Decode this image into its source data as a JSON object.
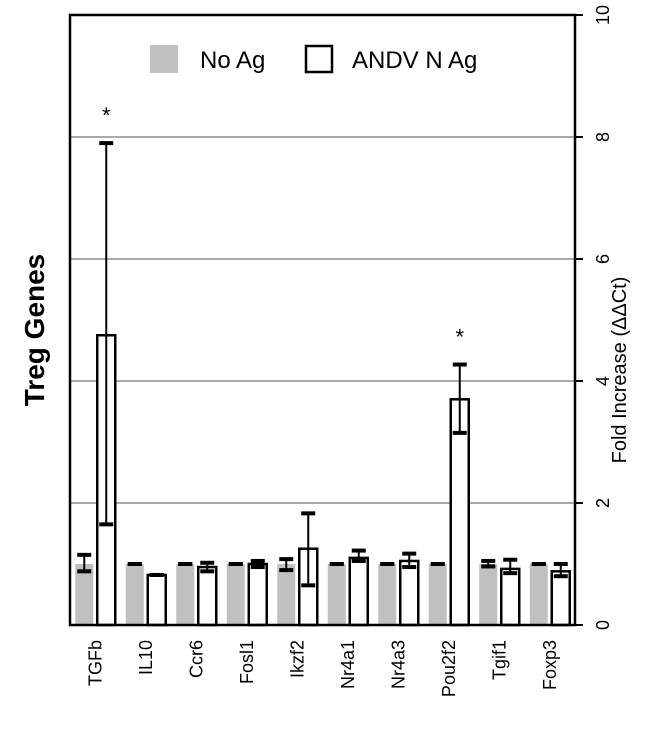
{
  "chart_data": {
    "type": "bar",
    "title": "",
    "side_title": "Treg Genes",
    "xlabel": "",
    "ylabel": "Fold Increase (ΔΔCt)",
    "ylim": [
      0,
      10
    ],
    "y_ticks": [
      0,
      2,
      4,
      6,
      8,
      10
    ],
    "grid": true,
    "legend_position": "top",
    "categories": [
      "TGFb",
      "IL10",
      "Ccr6",
      "Fosl1",
      "Ikzf2",
      "Nr4a1",
      "Nr4a3",
      "Pou2f2",
      "Tgif1",
      "Foxp3"
    ],
    "series": [
      {
        "name": "No Ag",
        "color": "#c0c0c0",
        "values": [
          1.0,
          1.0,
          1.0,
          1.0,
          1.0,
          1.0,
          1.0,
          1.0,
          1.0,
          1.0
        ],
        "error_low": [
          0.88,
          1.0,
          1.0,
          1.0,
          0.9,
          1.0,
          1.0,
          1.0,
          0.96,
          1.0
        ],
        "error_high": [
          1.15,
          1.0,
          1.0,
          1.0,
          1.08,
          1.0,
          1.0,
          1.0,
          1.05,
          1.0
        ]
      },
      {
        "name": "ANDV N Ag",
        "color": "#ffffff",
        "values": [
          4.75,
          0.82,
          0.95,
          1.0,
          1.25,
          1.1,
          1.05,
          3.7,
          0.92,
          0.88
        ],
        "error_low": [
          1.65,
          0.82,
          0.88,
          0.95,
          0.65,
          1.05,
          0.95,
          3.15,
          0.85,
          0.8
        ],
        "error_high": [
          7.9,
          0.82,
          1.02,
          1.05,
          1.83,
          1.22,
          1.17,
          4.27,
          1.07,
          1.0
        ]
      }
    ],
    "annotations": [
      {
        "category": "TGFb",
        "text": "*"
      },
      {
        "category": "Pou2f2",
        "text": "*"
      }
    ]
  }
}
